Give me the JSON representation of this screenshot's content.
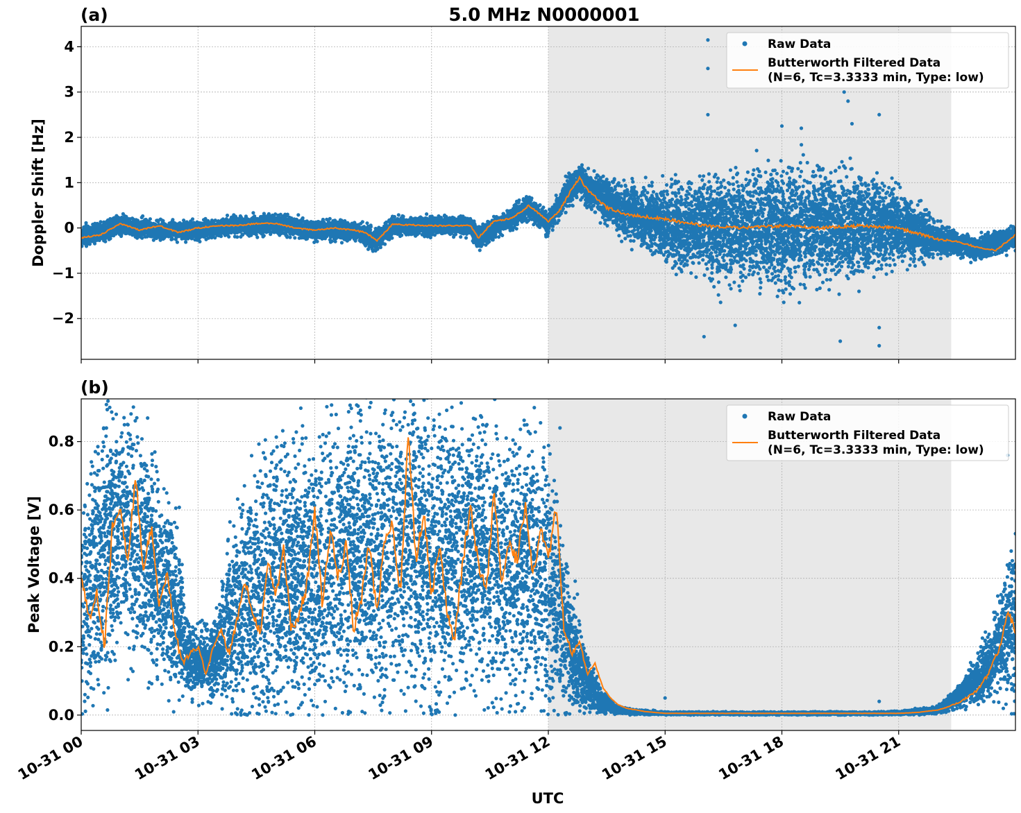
{
  "figure": {
    "title": "5.0 MHz N0000001",
    "xlabel": "UTC"
  },
  "colors": {
    "raw": "#1f77b4",
    "filtered": "#ff7f0e",
    "night_shade": "#e8e8e8",
    "grid": "#b0b0b0"
  },
  "legend": {
    "raw_label": "Raw Data",
    "filtered_label_line1": "Butterworth Filtered Data",
    "filtered_label_line2": "(N=6, Tc=3.3333 min, Type: low)",
    "placement": "top-right"
  },
  "chart_data": [
    {
      "type": "scatter",
      "panel_label": "(a)",
      "ylabel": "Doppler Shift [Hz]",
      "xlim_hours": [
        0,
        24
      ],
      "ylim": [
        -2.9,
        4.45
      ],
      "yticks": [
        -2,
        -1,
        0,
        1,
        2,
        3,
        4
      ],
      "ytick_labels": [
        "−2",
        "−1",
        "0",
        "1",
        "2",
        "3",
        "4"
      ],
      "shaded_region_hours": [
        12,
        22.35
      ],
      "grid": true,
      "series": [
        {
          "name": "Raw Data",
          "style": "points",
          "x_hours": [
            0,
            1,
            2,
            3,
            4,
            5,
            6,
            7,
            7.6,
            8,
            9,
            10,
            10.2,
            11,
            11.5,
            12,
            12.5,
            12.8,
            13,
            14,
            15,
            16,
            17,
            18,
            19,
            20,
            21,
            22,
            22.5,
            23,
            24
          ],
          "center": [
            -0.18,
            0.05,
            -0.05,
            -0.05,
            0.05,
            0.08,
            -0.05,
            -0.05,
            -0.28,
            0.05,
            0.05,
            0.05,
            -0.22,
            0.2,
            0.45,
            0.1,
            0.8,
            1.05,
            0.85,
            0.35,
            0.1,
            0.02,
            0.02,
            0.05,
            0.05,
            0.05,
            0.05,
            -0.25,
            -0.35,
            -0.45,
            -0.2
          ],
          "spread": [
            0.25,
            0.2,
            0.2,
            0.2,
            0.2,
            0.2,
            0.2,
            0.2,
            0.22,
            0.2,
            0.2,
            0.2,
            0.22,
            0.22,
            0.25,
            0.25,
            0.35,
            0.35,
            0.35,
            0.55,
            0.85,
            1.05,
            1.2,
            1.3,
            1.25,
            1.05,
            0.8,
            0.35,
            0.25,
            0.25,
            0.25
          ],
          "outliers": [
            [
              16.1,
              4.15
            ],
            [
              16.1,
              3.52
            ],
            [
              16.1,
              2.5
            ],
            [
              19.6,
              3.0
            ],
            [
              19.7,
              2.8
            ],
            [
              19.8,
              2.3
            ],
            [
              20.5,
              2.5
            ],
            [
              16.0,
              -2.4
            ],
            [
              16.8,
              -2.15
            ],
            [
              19.5,
              -2.5
            ],
            [
              20.5,
              -2.6
            ],
            [
              20.5,
              -2.2
            ],
            [
              18.0,
              2.25
            ],
            [
              18.5,
              2.2
            ]
          ]
        },
        {
          "name": "Butterworth Filtered Data (N=6, Tc=3.3333 min, Type: low)",
          "style": "line",
          "x_hours": [
            0,
            0.5,
            1,
            1.5,
            2,
            2.5,
            3,
            3.5,
            4,
            4.5,
            5,
            5.5,
            6,
            6.5,
            7,
            7.3,
            7.6,
            8,
            9,
            9.5,
            10,
            10.2,
            10.6,
            11,
            11.3,
            11.5,
            12,
            12.3,
            12.6,
            12.8,
            13,
            13.5,
            14,
            15,
            16,
            17,
            18,
            19,
            20,
            21,
            22,
            22.5,
            23,
            23.5,
            24
          ],
          "y": [
            -0.22,
            -0.15,
            0.1,
            -0.05,
            0.05,
            -0.1,
            0.0,
            0.05,
            0.05,
            0.1,
            0.1,
            0.0,
            -0.05,
            0.0,
            -0.05,
            -0.1,
            -0.28,
            0.08,
            0.05,
            0.05,
            0.05,
            -0.22,
            0.15,
            0.2,
            0.35,
            0.5,
            0.15,
            0.4,
            0.85,
            1.1,
            0.85,
            0.45,
            0.3,
            0.2,
            0.05,
            0.0,
            0.05,
            0.0,
            0.05,
            0.0,
            -0.25,
            -0.3,
            -0.42,
            -0.5,
            -0.15
          ]
        }
      ]
    },
    {
      "type": "scatter",
      "panel_label": "(b)",
      "ylabel": "Peak Voltage [V]",
      "xlim_hours": [
        0,
        24
      ],
      "ylim": [
        -0.045,
        0.925
      ],
      "yticks": [
        0.0,
        0.2,
        0.4,
        0.6,
        0.8
      ],
      "ytick_labels": [
        "0.0",
        "0.2",
        "0.4",
        "0.6",
        "0.8"
      ],
      "shaded_region_hours": [
        12,
        22.35
      ],
      "grid": true,
      "xticks_hours": [
        0,
        3,
        6,
        9,
        12,
        15,
        18,
        21
      ],
      "xtick_labels": [
        "10-31 00",
        "10-31 03",
        "10-31 06",
        "10-31 09",
        "10-31 12",
        "10-31 15",
        "10-31 18",
        "10-31 21"
      ],
      "series": [
        {
          "name": "Raw Data",
          "style": "points",
          "x_hours": [
            0,
            0.5,
            1,
            1.5,
            2,
            2.5,
            2.7,
            3,
            3.5,
            4,
            4.5,
            5,
            5.5,
            6,
            6.5,
            7,
            7.5,
            8,
            8.5,
            9,
            9.5,
            10,
            10.5,
            11,
            11.5,
            12,
            12.5,
            13,
            13.3,
            13.7,
            14,
            15,
            20,
            21,
            22,
            22.5,
            23,
            23.5,
            24
          ],
          "center": [
            0.32,
            0.45,
            0.55,
            0.5,
            0.4,
            0.3,
            0.18,
            0.15,
            0.18,
            0.3,
            0.35,
            0.4,
            0.42,
            0.38,
            0.45,
            0.5,
            0.45,
            0.5,
            0.5,
            0.45,
            0.45,
            0.5,
            0.45,
            0.45,
            0.45,
            0.4,
            0.22,
            0.1,
            0.05,
            0.02,
            0.01,
            0.005,
            0.005,
            0.006,
            0.015,
            0.05,
            0.1,
            0.18,
            0.28
          ],
          "spread": [
            0.3,
            0.38,
            0.33,
            0.33,
            0.3,
            0.25,
            0.12,
            0.1,
            0.12,
            0.28,
            0.35,
            0.38,
            0.4,
            0.4,
            0.42,
            0.42,
            0.4,
            0.42,
            0.42,
            0.42,
            0.4,
            0.42,
            0.4,
            0.4,
            0.42,
            0.35,
            0.2,
            0.08,
            0.04,
            0.015,
            0.008,
            0.004,
            0.004,
            0.005,
            0.01,
            0.03,
            0.07,
            0.12,
            0.25
          ],
          "outliers": [
            [
              0.9,
              0.88
            ],
            [
              1.1,
              0.87
            ],
            [
              8.0,
              0.885
            ],
            [
              8.3,
              0.87
            ],
            [
              9.2,
              0.88
            ],
            [
              11.8,
              0.855
            ],
            [
              12.3,
              0.84
            ],
            [
              15.0,
              0.05
            ],
            [
              20.5,
              0.04
            ],
            [
              23.8,
              0.76
            ]
          ]
        },
        {
          "name": "Butterworth Filtered Data (N=6, Tc=3.3333 min, Type: low)",
          "style": "line",
          "x_hours": [
            0,
            0.2,
            0.4,
            0.6,
            0.8,
            1,
            1.2,
            1.4,
            1.6,
            1.8,
            2,
            2.2,
            2.4,
            2.6,
            2.8,
            3,
            3.2,
            3.4,
            3.6,
            3.8,
            4,
            4.2,
            4.4,
            4.6,
            4.8,
            5,
            5.2,
            5.4,
            5.6,
            5.8,
            6,
            6.2,
            6.4,
            6.6,
            6.8,
            7,
            7.2,
            7.4,
            7.6,
            7.8,
            8,
            8.2,
            8.4,
            8.6,
            8.8,
            9,
            9.2,
            9.4,
            9.6,
            9.8,
            10,
            10.2,
            10.4,
            10.6,
            10.8,
            11,
            11.2,
            11.4,
            11.6,
            11.8,
            12,
            12.2,
            12.4,
            12.6,
            12.8,
            13,
            13.2,
            13.4,
            13.6,
            13.8,
            14,
            14.5,
            15,
            16,
            17,
            18,
            19,
            20,
            20.5,
            21,
            21.5,
            22,
            22.3,
            22.6,
            23,
            23.3,
            23.6,
            23.8,
            24
          ],
          "y": [
            0.4,
            0.28,
            0.35,
            0.2,
            0.55,
            0.6,
            0.45,
            0.7,
            0.42,
            0.55,
            0.32,
            0.42,
            0.25,
            0.15,
            0.18,
            0.2,
            0.12,
            0.2,
            0.25,
            0.18,
            0.28,
            0.4,
            0.3,
            0.25,
            0.45,
            0.35,
            0.5,
            0.25,
            0.3,
            0.38,
            0.6,
            0.32,
            0.55,
            0.4,
            0.5,
            0.25,
            0.35,
            0.5,
            0.3,
            0.52,
            0.55,
            0.35,
            0.82,
            0.45,
            0.6,
            0.35,
            0.5,
            0.3,
            0.22,
            0.45,
            0.6,
            0.45,
            0.35,
            0.65,
            0.4,
            0.5,
            0.45,
            0.62,
            0.4,
            0.55,
            0.45,
            0.62,
            0.25,
            0.18,
            0.22,
            0.12,
            0.15,
            0.08,
            0.05,
            0.03,
            0.02,
            0.01,
            0.005,
            0.005,
            0.005,
            0.005,
            0.005,
            0.005,
            0.005,
            0.005,
            0.008,
            0.015,
            0.025,
            0.04,
            0.07,
            0.12,
            0.2,
            0.3,
            0.25
          ]
        }
      ]
    }
  ]
}
